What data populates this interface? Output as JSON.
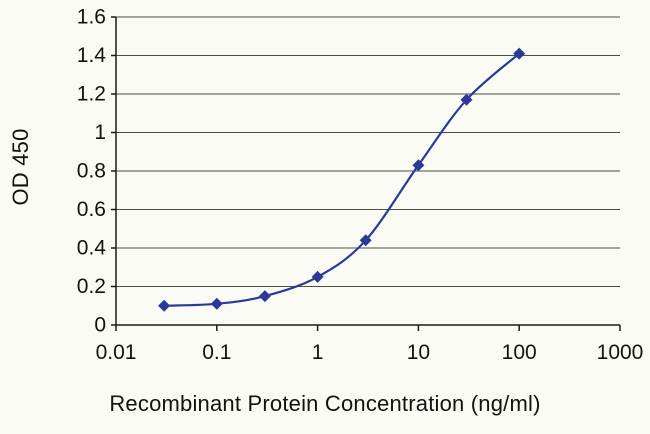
{
  "figure": {
    "background": "#fbfbf6"
  },
  "chart_data": {
    "type": "line",
    "title": "",
    "xlabel": "Recombinant Protein Concentration (ng/ml)",
    "ylabel": "OD 450",
    "x_scale": "log",
    "xlim": [
      0.01,
      1000
    ],
    "ylim": [
      0,
      1.6
    ],
    "x_tick_values": [
      0.01,
      0.1,
      1,
      10,
      100,
      1000
    ],
    "x_tick_labels": [
      "0.01",
      "0.1",
      "1",
      "10",
      "100",
      "1000"
    ],
    "y_tick_values": [
      0,
      0.2,
      0.4,
      0.6,
      0.8,
      1,
      1.2,
      1.4,
      1.6
    ],
    "y_tick_labels": [
      "0",
      "0.2",
      "0.4",
      "0.6",
      "0.8",
      "1",
      "1.2",
      "1.4",
      "1.6"
    ],
    "grid": "horizontal",
    "legend": "none",
    "marker": "diamond",
    "series": [
      {
        "x": [
          0.03,
          0.1,
          0.3,
          1,
          3,
          10,
          30,
          100
        ],
        "y": [
          0.1,
          0.11,
          0.15,
          0.25,
          0.44,
          0.83,
          1.17,
          1.41
        ],
        "color": "#2b3a98"
      }
    ],
    "colors": {
      "grid": "#4d4d4d",
      "axis": "#1a1a1a",
      "text": "#121212",
      "series": "#2b3a98"
    }
  }
}
